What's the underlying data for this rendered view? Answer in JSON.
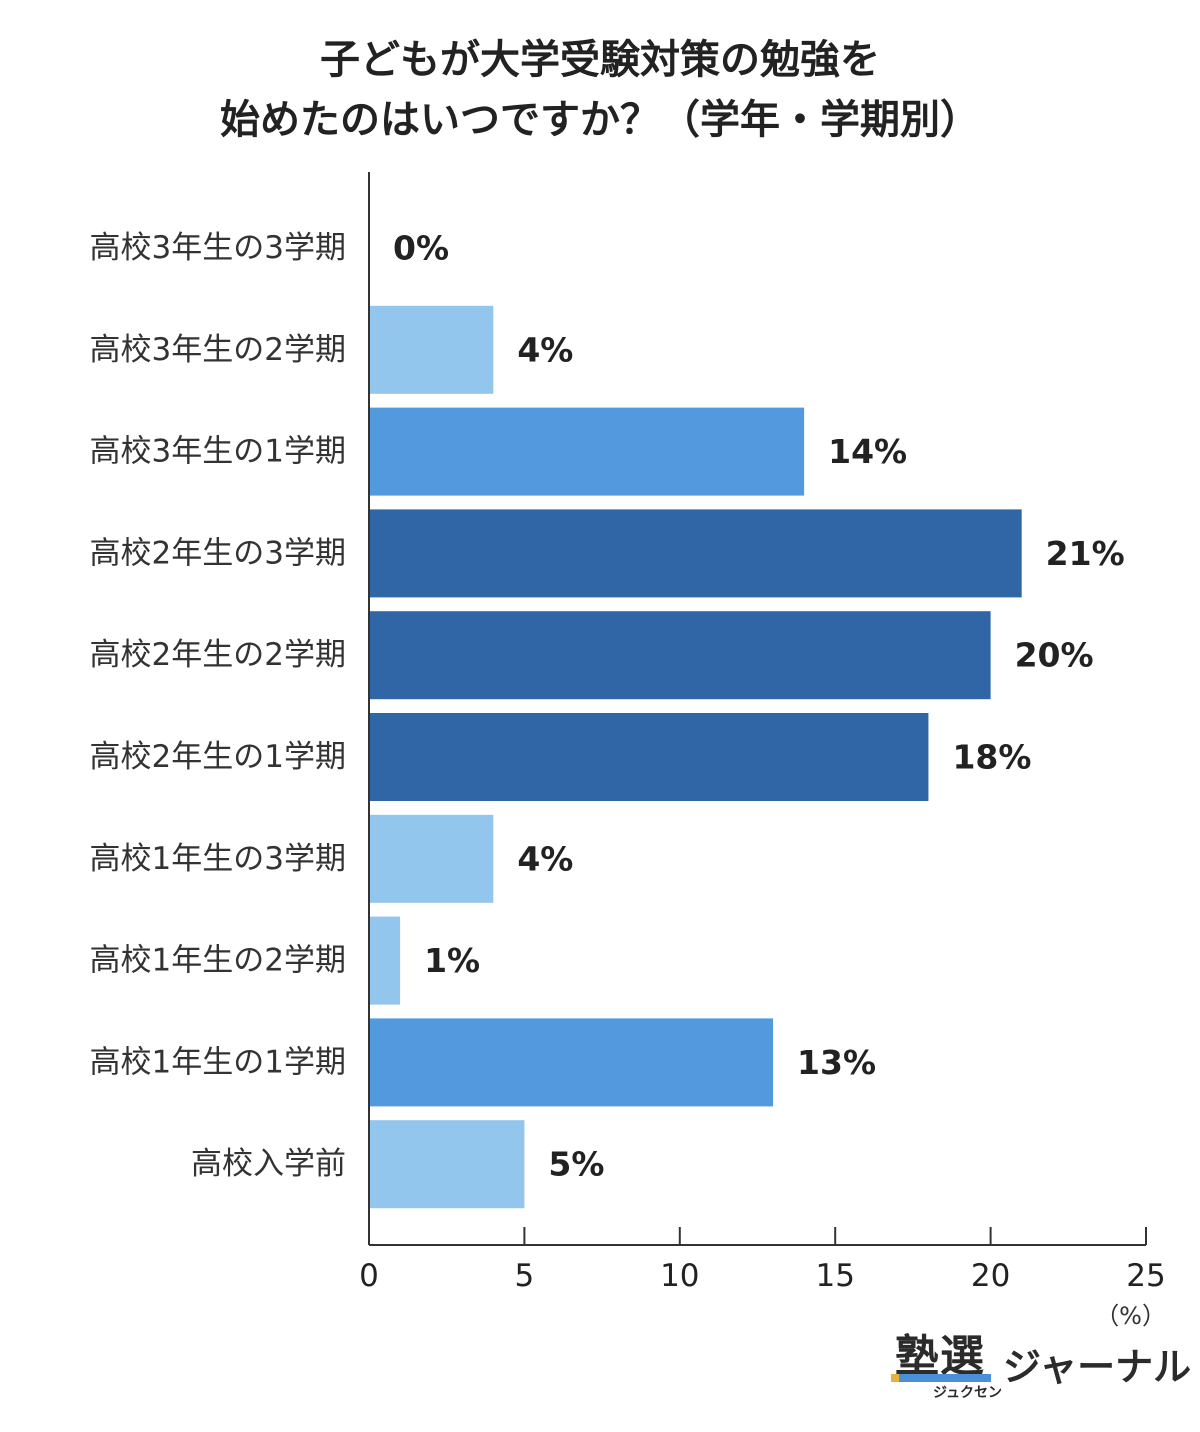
{
  "chart_data": {
    "type": "bar",
    "orientation": "horizontal",
    "title_lines": [
      "子どもが大学受験対策の勉強を",
      "始めたのはいつですか？（学年・学期別）"
    ],
    "categories": [
      "高校3年生の3学期",
      "高校3年生の2学期",
      "高校3年生の1学期",
      "高校2年生の3学期",
      "高校2年生の2学期",
      "高校2年生の1学期",
      "高校1年生の3学期",
      "高校1年生の2学期",
      "高校1年生の1学期",
      "高校入学前"
    ],
    "values": [
      0,
      4,
      14,
      21,
      20,
      18,
      4,
      1,
      13,
      5
    ],
    "value_labels": [
      "0%",
      "4%",
      "14%",
      "21%",
      "20%",
      "18%",
      "4%",
      "1%",
      "13%",
      "5%"
    ],
    "bar_colors": [
      "#93c6ec",
      "#93c6ec",
      "#5399dd",
      "#3066a6",
      "#3066a6",
      "#3066a6",
      "#93c6ec",
      "#93c6ec",
      "#5399dd",
      "#93c6ec"
    ],
    "xlim": [
      0,
      25
    ],
    "xticks": [
      0,
      5,
      10,
      15,
      20,
      25
    ],
    "xtick_labels": [
      "0",
      "5",
      "10",
      "15",
      "20",
      "25"
    ],
    "unit_label": "（%）",
    "grid": false
  },
  "logo": {
    "kanji": "塾選",
    "kana": "ジュクセン",
    "journal": "ジャーナル"
  }
}
